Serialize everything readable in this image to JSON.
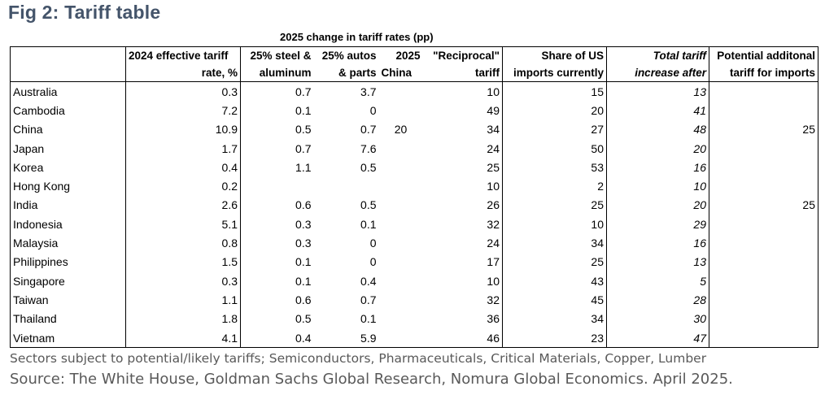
{
  "figure": {
    "title": "Fig 2: Tariff table",
    "supertitle": "2025 change in tariff rates (pp)",
    "note": "Sectors subject to potential/likely tariffs; Semiconductors, Pharmaceuticals, Critical Materials, Copper, Lumber",
    "source": "Source: The White House, Goldman Sachs Global Research, Nomura Global Economics. April 2025."
  },
  "chart_data": {
    "type": "table",
    "title": "Fig 2: Tariff table",
    "column_group": "2025 change in tariff rates (pp)",
    "columns": [
      {
        "line1": "",
        "line2": ""
      },
      {
        "line1": "2024 effective tariff",
        "line2": "rate, %"
      },
      {
        "line1": "25% steel &",
        "line2": "aluminum"
      },
      {
        "line1": "25% autos",
        "line2": "& parts"
      },
      {
        "line1": "2025",
        "line2": "China"
      },
      {
        "line1": "\"Reciprocal\"",
        "line2": "tariff"
      },
      {
        "line1": "Share of US",
        "line2": "imports currently"
      },
      {
        "line1": "Total tariff",
        "line2": "increase after"
      },
      {
        "line1": "Potential additonal",
        "line2": "tariff for imports"
      }
    ],
    "rows": [
      {
        "country": "Australia",
        "cells": [
          "0.3",
          "0.7",
          "3.7",
          "",
          "10",
          "15",
          "13",
          ""
        ]
      },
      {
        "country": "Cambodia",
        "cells": [
          "7.2",
          "0.1",
          "0",
          "",
          "49",
          "20",
          "41",
          ""
        ]
      },
      {
        "country": "China",
        "cells": [
          "10.9",
          "0.5",
          "0.7",
          "20",
          "34",
          "27",
          "48",
          "25"
        ]
      },
      {
        "country": "Japan",
        "cells": [
          "1.7",
          "0.7",
          "7.6",
          "",
          "24",
          "50",
          "20",
          ""
        ]
      },
      {
        "country": "Korea",
        "cells": [
          "0.4",
          "1.1",
          "0.5",
          "",
          "25",
          "53",
          "16",
          ""
        ]
      },
      {
        "country": "Hong Kong",
        "cells": [
          "0.2",
          "",
          "",
          "",
          "10",
          "2",
          "10",
          ""
        ]
      },
      {
        "country": "India",
        "cells": [
          "2.6",
          "0.6",
          "0.5",
          "",
          "26",
          "25",
          "20",
          "25"
        ]
      },
      {
        "country": "Indonesia",
        "cells": [
          "5.1",
          "0.3",
          "0.1",
          "",
          "32",
          "10",
          "29",
          ""
        ]
      },
      {
        "country": "Malaysia",
        "cells": [
          "0.8",
          "0.3",
          "0",
          "",
          "24",
          "34",
          "16",
          ""
        ]
      },
      {
        "country": "Philippines",
        "cells": [
          "1.5",
          "0.1",
          "0",
          "",
          "17",
          "25",
          "13",
          ""
        ]
      },
      {
        "country": "Singapore",
        "cells": [
          "0.3",
          "0.1",
          "0.4",
          "",
          "10",
          "43",
          "5",
          ""
        ]
      },
      {
        "country": "Taiwan",
        "cells": [
          "1.1",
          "0.6",
          "0.7",
          "",
          "32",
          "45",
          "28",
          ""
        ]
      },
      {
        "country": "Thailand",
        "cells": [
          "1.8",
          "0.5",
          "0.1",
          "",
          "36",
          "34",
          "30",
          ""
        ]
      },
      {
        "country": "Vietnam",
        "cells": [
          "4.1",
          "0.4",
          "5.9",
          "",
          "46",
          "23",
          "47",
          ""
        ]
      }
    ]
  }
}
